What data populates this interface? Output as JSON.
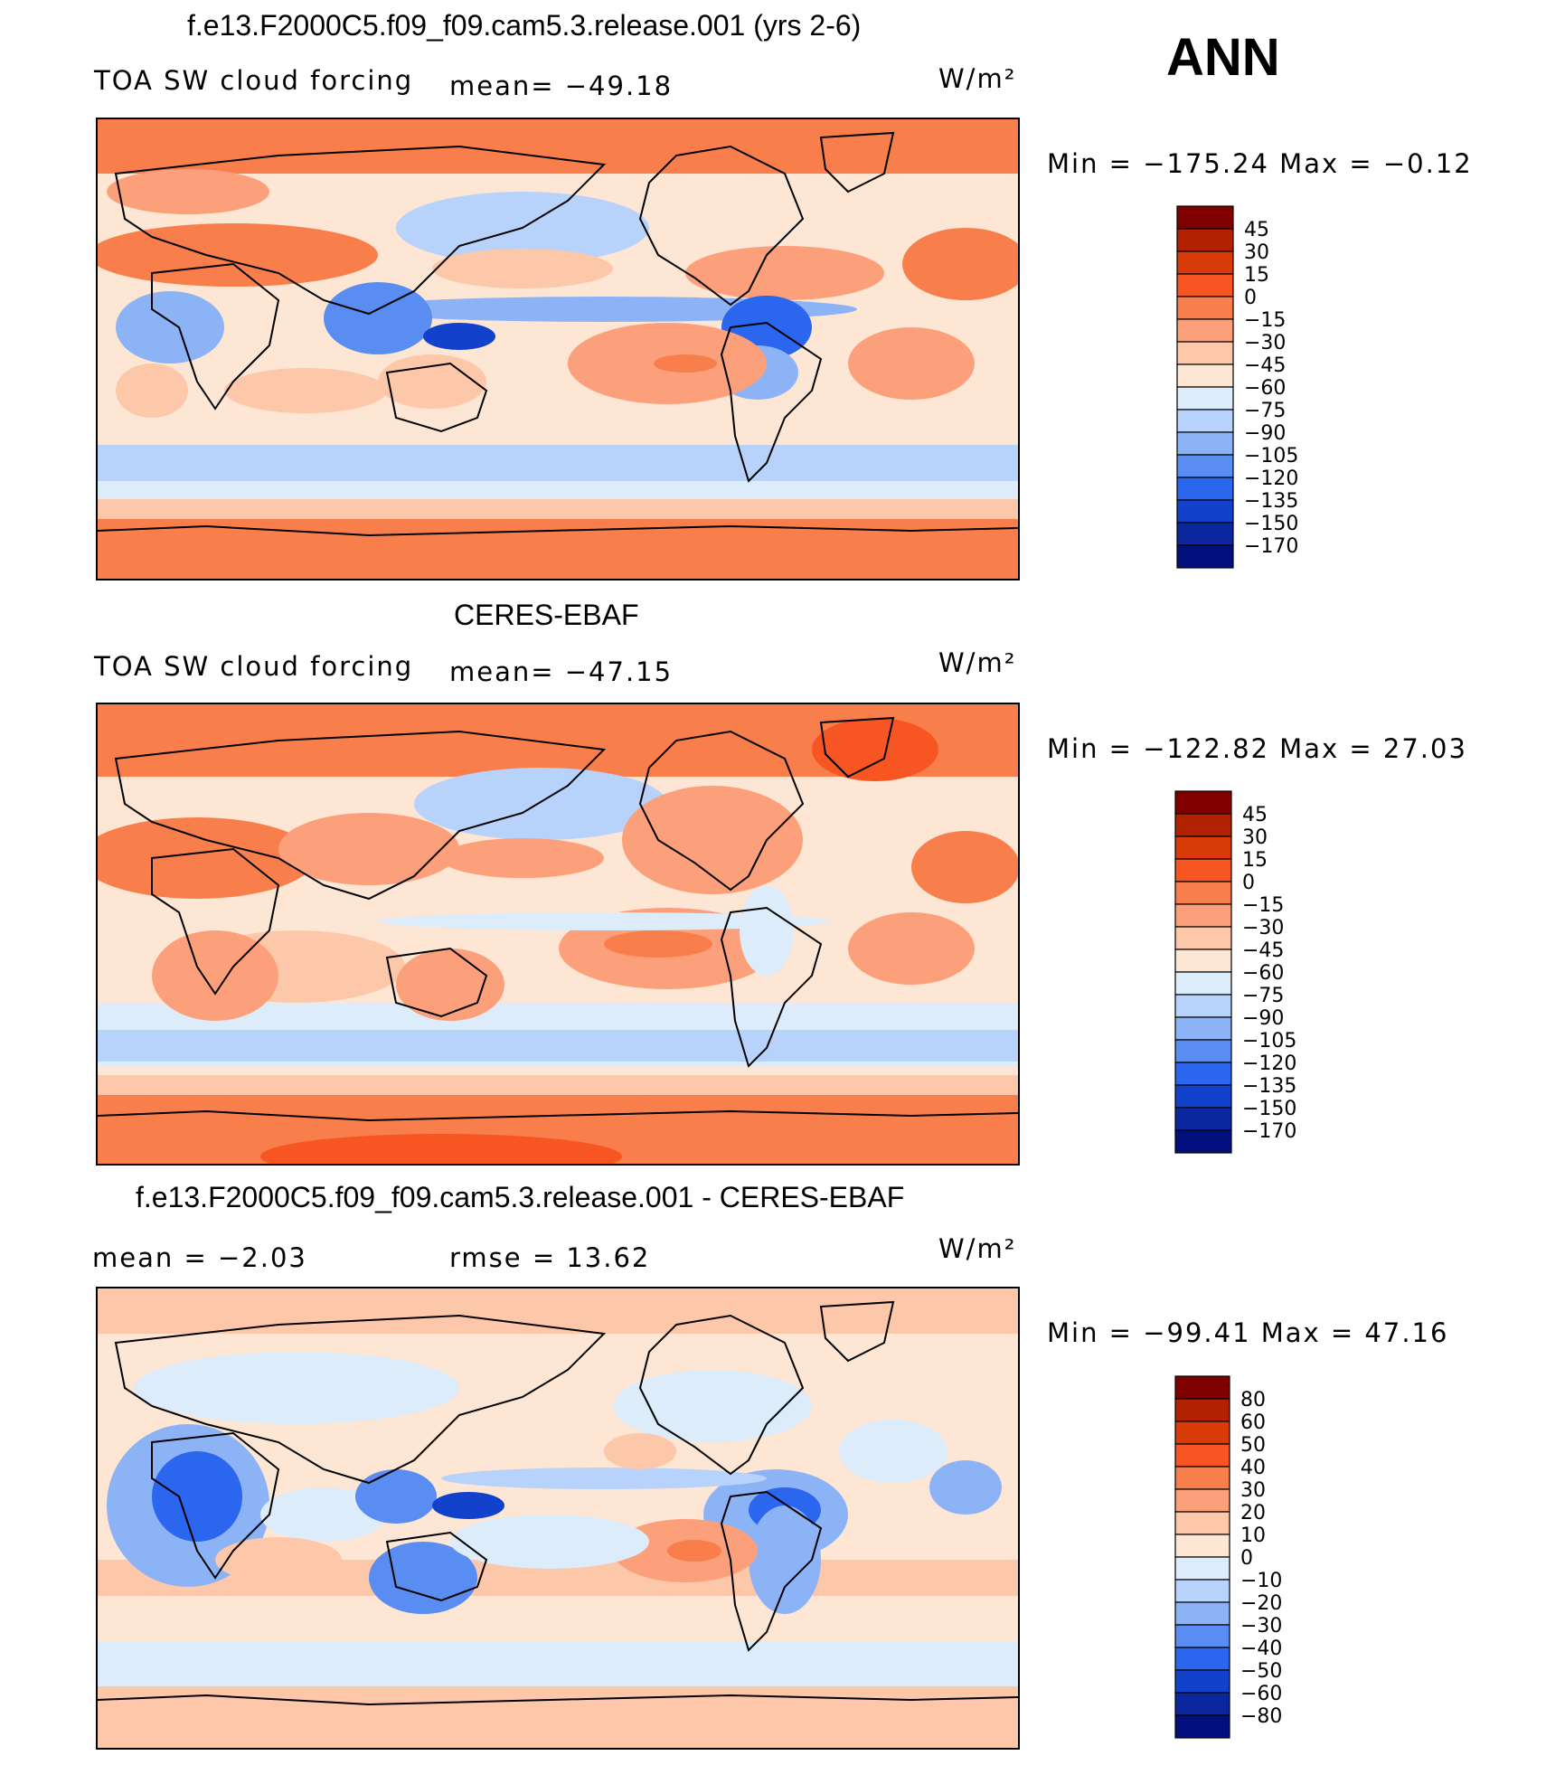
{
  "season": "ANN",
  "units_label": "W/m²",
  "panels": [
    {
      "title": "f.e13.F2000C5.f09_f09.cam5.3.release.001 (yrs 2-6)",
      "left_label": "TOA SW cloud forcing",
      "center_label": "mean=  −49.18",
      "minmax": "Min  =  −175.24  Max  =    −0.12"
    },
    {
      "title": "CERES-EBAF",
      "left_label": "TOA SW cloud forcing",
      "center_label": "mean=  −47.15",
      "minmax": "Min  =  −122.82  Max  =    27.03"
    },
    {
      "title": "f.e13.F2000C5.f09_f09.cam5.3.release.001 - CERES-EBAF",
      "left_label": "mean  =    −2.03",
      "center_label": "rmse  =    13.62",
      "minmax": "Min  =  −99.41  Max  =    47.16"
    }
  ],
  "chart_data": [
    {
      "type": "heatmap",
      "title": "f.e13.F2000C5.f09_f09.cam5.3.release.001 (yrs 2-6)",
      "variable": "TOA SW cloud forcing",
      "units": "W/m²",
      "mean": -49.18,
      "min": -175.24,
      "max": -0.12,
      "colorbar_levels": [
        45,
        30,
        15,
        0,
        -15,
        -30,
        -45,
        -60,
        -75,
        -90,
        -105,
        -120,
        -135,
        -150,
        -170
      ],
      "colorbar_labels": [
        "45",
        "30",
        "15",
        "0",
        "−15",
        "−30",
        "−45",
        "−60",
        "−75",
        "−90",
        "−105",
        "−120",
        "−135",
        "−150",
        "−170"
      ]
    },
    {
      "type": "heatmap",
      "title": "CERES-EBAF",
      "variable": "TOA SW cloud forcing",
      "units": "W/m²",
      "mean": -47.15,
      "min": -122.82,
      "max": 27.03,
      "colorbar_levels": [
        45,
        30,
        15,
        0,
        -15,
        -30,
        -45,
        -60,
        -75,
        -90,
        -105,
        -120,
        -135,
        -150,
        -170
      ],
      "colorbar_labels": [
        "45",
        "30",
        "15",
        "0",
        "−15",
        "−30",
        "−45",
        "−60",
        "−75",
        "−90",
        "−105",
        "−120",
        "−135",
        "−150",
        "−170"
      ]
    },
    {
      "type": "heatmap",
      "title": "f.e13.F2000C5.f09_f09.cam5.3.release.001 - CERES-EBAF",
      "units": "W/m²",
      "mean": -2.03,
      "rmse": 13.62,
      "min": -99.41,
      "max": 47.16,
      "colorbar_levels": [
        80,
        60,
        50,
        40,
        30,
        20,
        10,
        0,
        -10,
        -20,
        -30,
        -40,
        -50,
        -60,
        -80
      ],
      "colorbar_labels": [
        "80",
        "60",
        "50",
        "40",
        "30",
        "20",
        "10",
        "0",
        "−10",
        "−20",
        "−30",
        "−40",
        "−50",
        "−60",
        "−80"
      ]
    }
  ],
  "colors": {
    "scale": [
      "#800000",
      "#b22200",
      "#d83a08",
      "#f75521",
      "#f87e4c",
      "#fca07b",
      "#fdc7a9",
      "#fde6d4",
      "#dcecfb",
      "#b7d3fb",
      "#8db3f7",
      "#5a8df2",
      "#2b66ef",
      "#1241cc",
      "#0a279f",
      "#030f7d"
    ]
  }
}
